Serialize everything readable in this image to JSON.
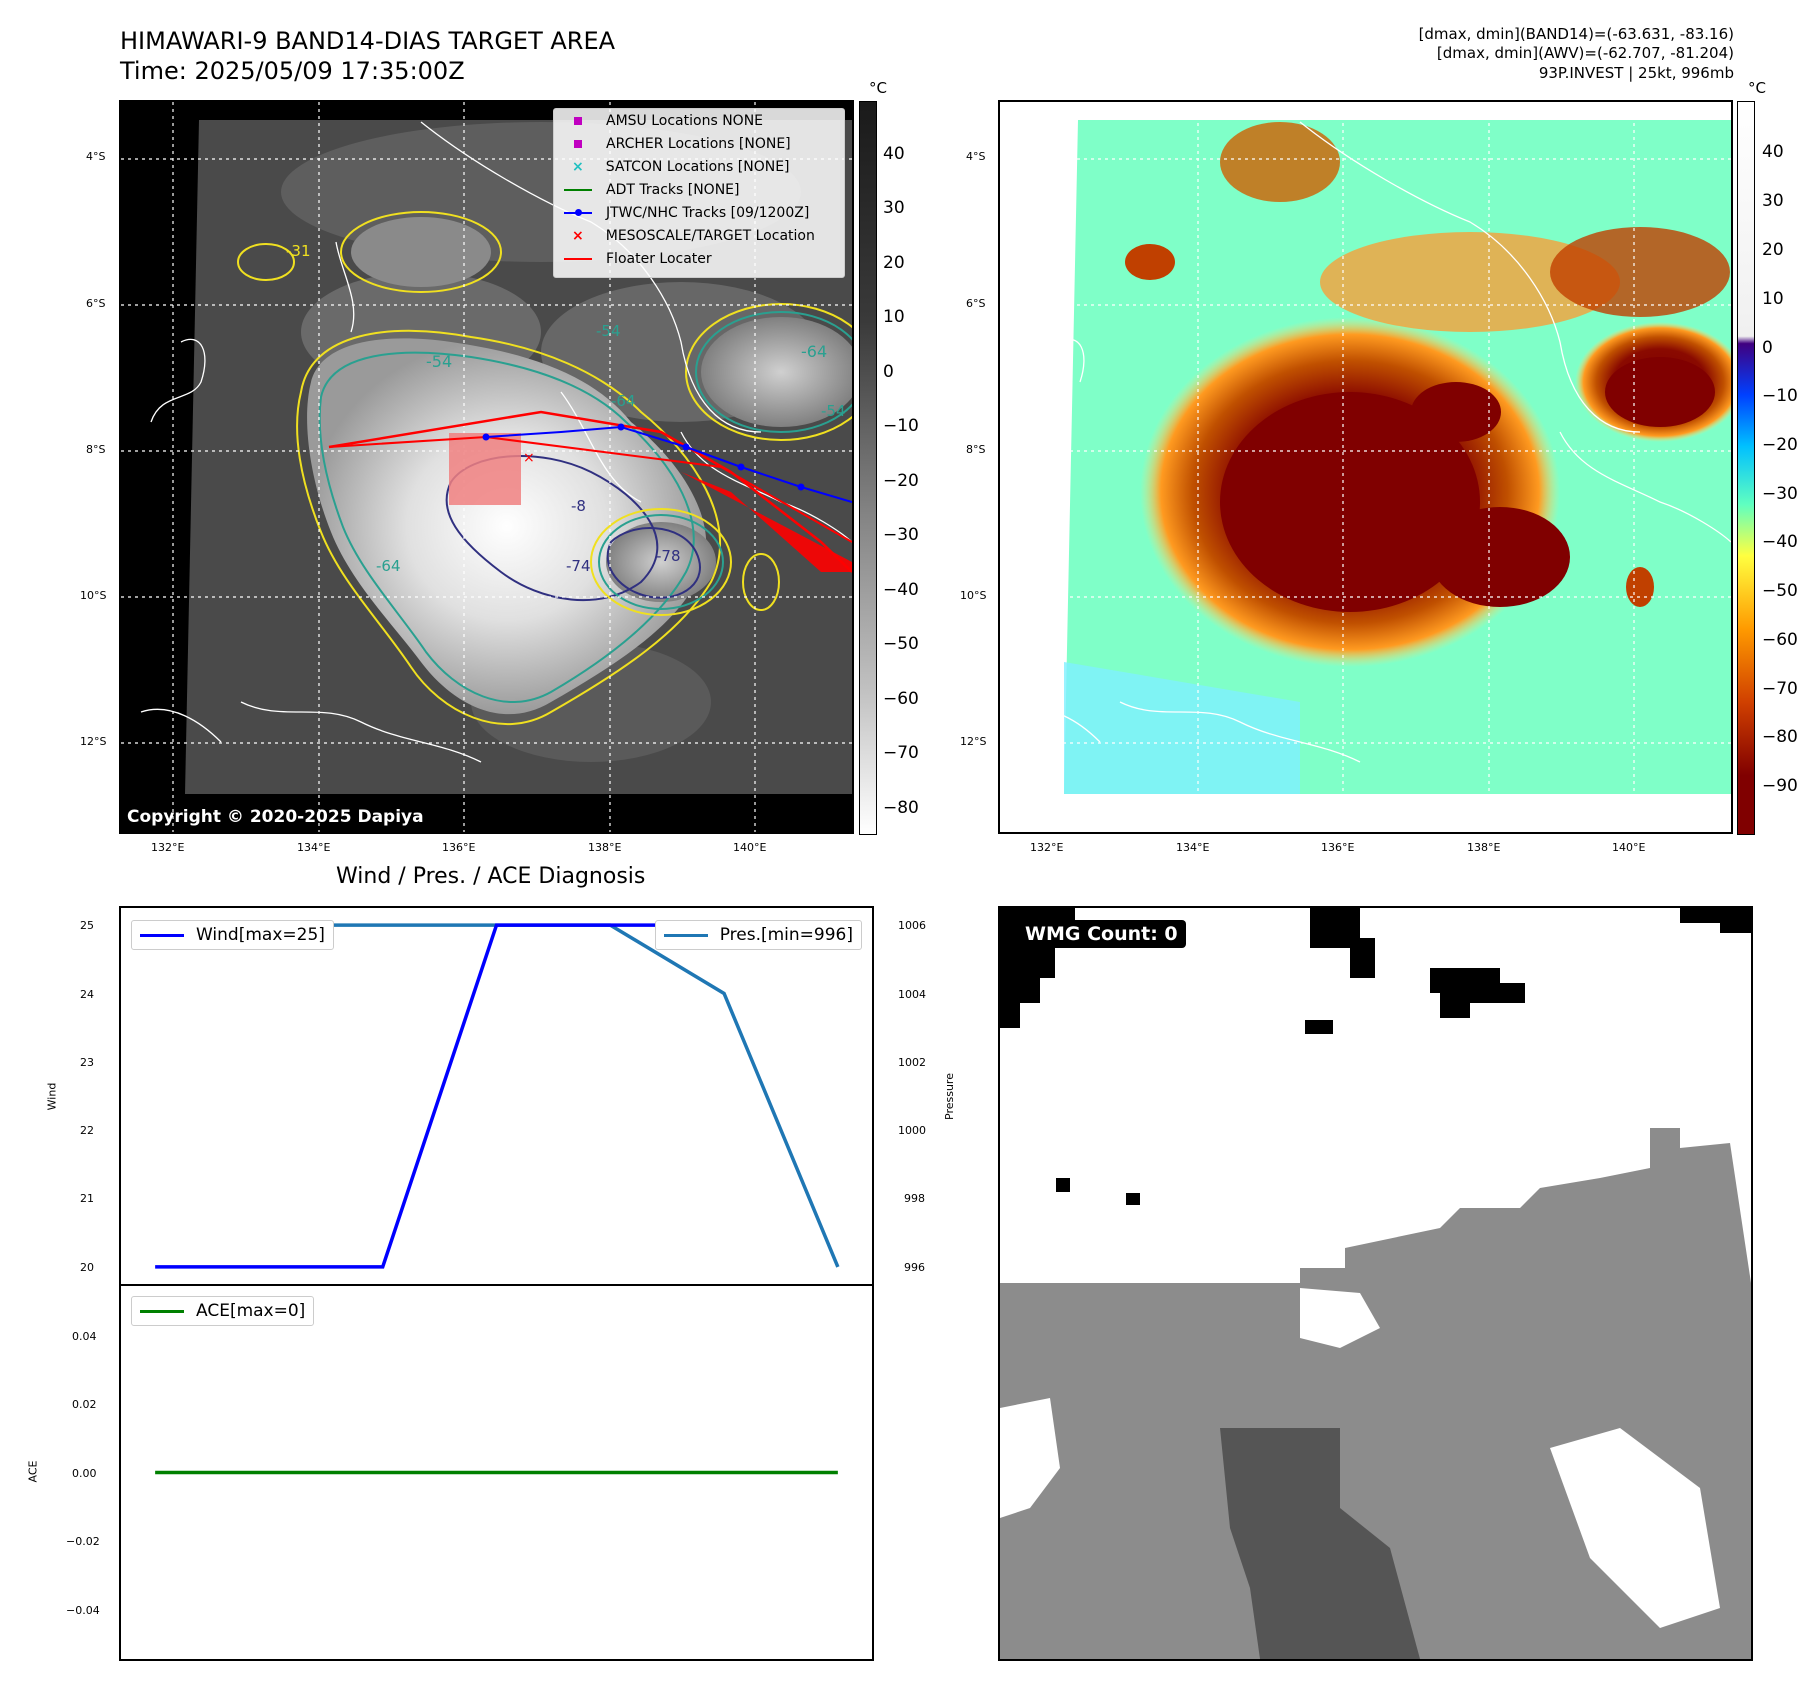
{
  "header": {
    "title_line1": "HIMAWARI-9 BAND14-DIAS TARGET AREA",
    "title_line2": "Time: 2025/05/09 17:35:00Z",
    "right_line1": "[dmax, dmin](BAND14)=(-63.631, -83.16)",
    "right_line2": "[dmax, dmin](AWV)=(-62.707, -81.204)",
    "right_line3": "93P.INVEST | 25kt, 996mb"
  },
  "map_ir": {
    "copyright": "Copyright © 2020-2025 Dapiya",
    "lat_ticks": [
      "4°S",
      "6°S",
      "8°S",
      "10°S",
      "12°S"
    ],
    "lon_ticks": [
      "132°E",
      "134°E",
      "136°E",
      "138°E",
      "140°E"
    ],
    "colorbar_unit": "°C",
    "colorbar_ticks": [
      "40",
      "30",
      "20",
      "10",
      "0",
      "−10",
      "−20",
      "−30",
      "−40",
      "−50",
      "−60",
      "−70",
      "−80"
    ],
    "contour_labels": [
      "-54",
      "-64",
      "-31",
      "-54",
      "-64",
      "-64",
      "-54",
      "-74",
      "-8",
      "-78"
    ],
    "legend": [
      {
        "label": "AMSU Locations NONE",
        "symbol": "square",
        "color": "#c000c0"
      },
      {
        "label": "ARCHER Locations [NONE]",
        "symbol": "square",
        "color": "#c000c0"
      },
      {
        "label": "SATCON Locations [NONE]",
        "symbol": "x",
        "color": "#20c0c0"
      },
      {
        "label": "ADT Tracks [NONE]",
        "symbol": "line",
        "color": "#008000"
      },
      {
        "label": "JTWC/NHC Tracks [09/1200Z]",
        "symbol": "line-dot",
        "color": "#0000ff"
      },
      {
        "label": "MESOSCALE/TARGET Location",
        "symbol": "x",
        "color": "#ff0000"
      },
      {
        "label": "Floater Locater",
        "symbol": "line",
        "color": "#ff0000"
      }
    ]
  },
  "map_awv": {
    "lat_ticks": [
      "4°S",
      "6°S",
      "8°S",
      "10°S",
      "12°S"
    ],
    "lon_ticks": [
      "132°E",
      "134°E",
      "136°E",
      "138°E",
      "140°E"
    ],
    "colorbar_unit": "°C",
    "colorbar_ticks": [
      "40",
      "30",
      "20",
      "10",
      "0",
      "−10",
      "−20",
      "−30",
      "−40",
      "−50",
      "−60",
      "−70",
      "−80",
      "−90"
    ]
  },
  "wind_panel": {
    "title": "Wind / Pres. / ACE Diagnosis",
    "ylabel_left": "Wind",
    "ylabel_right": "Pressure",
    "wind_legend": "Wind[max=25]",
    "pres_legend": "Pres.[min=996]",
    "wind_ticks": [
      "25",
      "24",
      "23",
      "22",
      "21",
      "20"
    ],
    "pres_ticks": [
      "1006",
      "1004",
      "1002",
      "1000",
      "998",
      "996"
    ]
  },
  "ace_panel": {
    "ylabel": "ACE",
    "legend": "ACE[max=0]",
    "ticks": [
      "0.04",
      "0.02",
      "0.00",
      "−0.02",
      "−0.04"
    ]
  },
  "wmg_panel": {
    "label": "WMG Count: 0"
  },
  "chart_data": [
    {
      "type": "line",
      "title": "Wind / Pres. / ACE Diagnosis",
      "ylabel": "Wind",
      "ylim": [
        19.75,
        25.25
      ],
      "x": [
        0,
        1,
        2,
        3,
        4,
        5,
        6
      ],
      "series": [
        {
          "name": "Wind[max=25]",
          "color": "#0000ff",
          "values": [
            20,
            20,
            20,
            25,
            25,
            25,
            25
          ]
        }
      ]
    },
    {
      "type": "line",
      "ylabel": "Pressure",
      "ylim": [
        995.5,
        1006.5
      ],
      "x": [
        0,
        1,
        2,
        3,
        4,
        5,
        6
      ],
      "series": [
        {
          "name": "Pres.[min=996]",
          "color": "#1f77b4",
          "values": [
            1006,
            1006,
            1006,
            1006,
            1006,
            1004,
            996
          ]
        }
      ]
    },
    {
      "type": "line",
      "ylabel": "ACE",
      "ylim": [
        -0.055,
        0.055
      ],
      "x": [
        0,
        6
      ],
      "series": [
        {
          "name": "ACE[max=0]",
          "color": "#008000",
          "values": [
            0,
            0
          ]
        }
      ]
    }
  ]
}
